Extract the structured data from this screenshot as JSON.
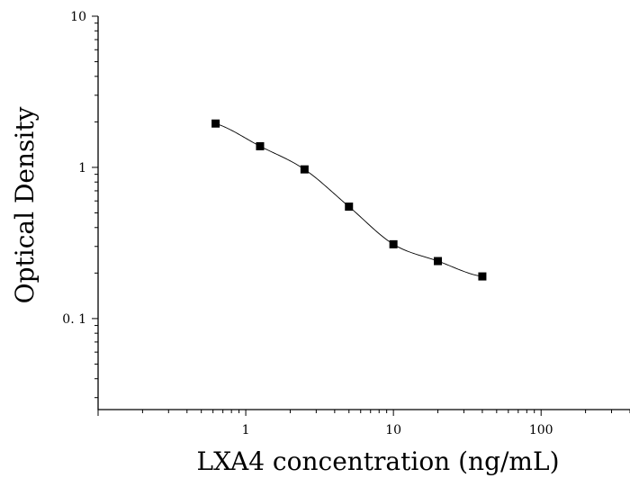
{
  "chart_data": {
    "type": "scatter",
    "title": "",
    "xlabel": "LXA4 concentration (ng/mL)",
    "ylabel": "Optical Density",
    "x_scale": "log",
    "y_scale": "log",
    "xlim": [
      0.1,
      400
    ],
    "ylim": [
      0.025,
      10
    ],
    "x_ticks": [
      {
        "value": 1,
        "label": "1"
      },
      {
        "value": 10,
        "label": "10"
      },
      {
        "value": 100,
        "label": "100"
      }
    ],
    "y_ticks": [
      {
        "value": 0.1,
        "label": "0. 1"
      },
      {
        "value": 1,
        "label": "1"
      },
      {
        "value": 10,
        "label": "10"
      }
    ],
    "grid": false,
    "legend": "none",
    "marker": "square",
    "has_fit_curve": true,
    "series": [
      {
        "x": [
          0.625,
          1.25,
          2.5,
          5,
          10,
          20,
          40
        ],
        "y": [
          1.95,
          1.38,
          0.97,
          0.55,
          0.31,
          0.24,
          0.19
        ]
      }
    ]
  }
}
